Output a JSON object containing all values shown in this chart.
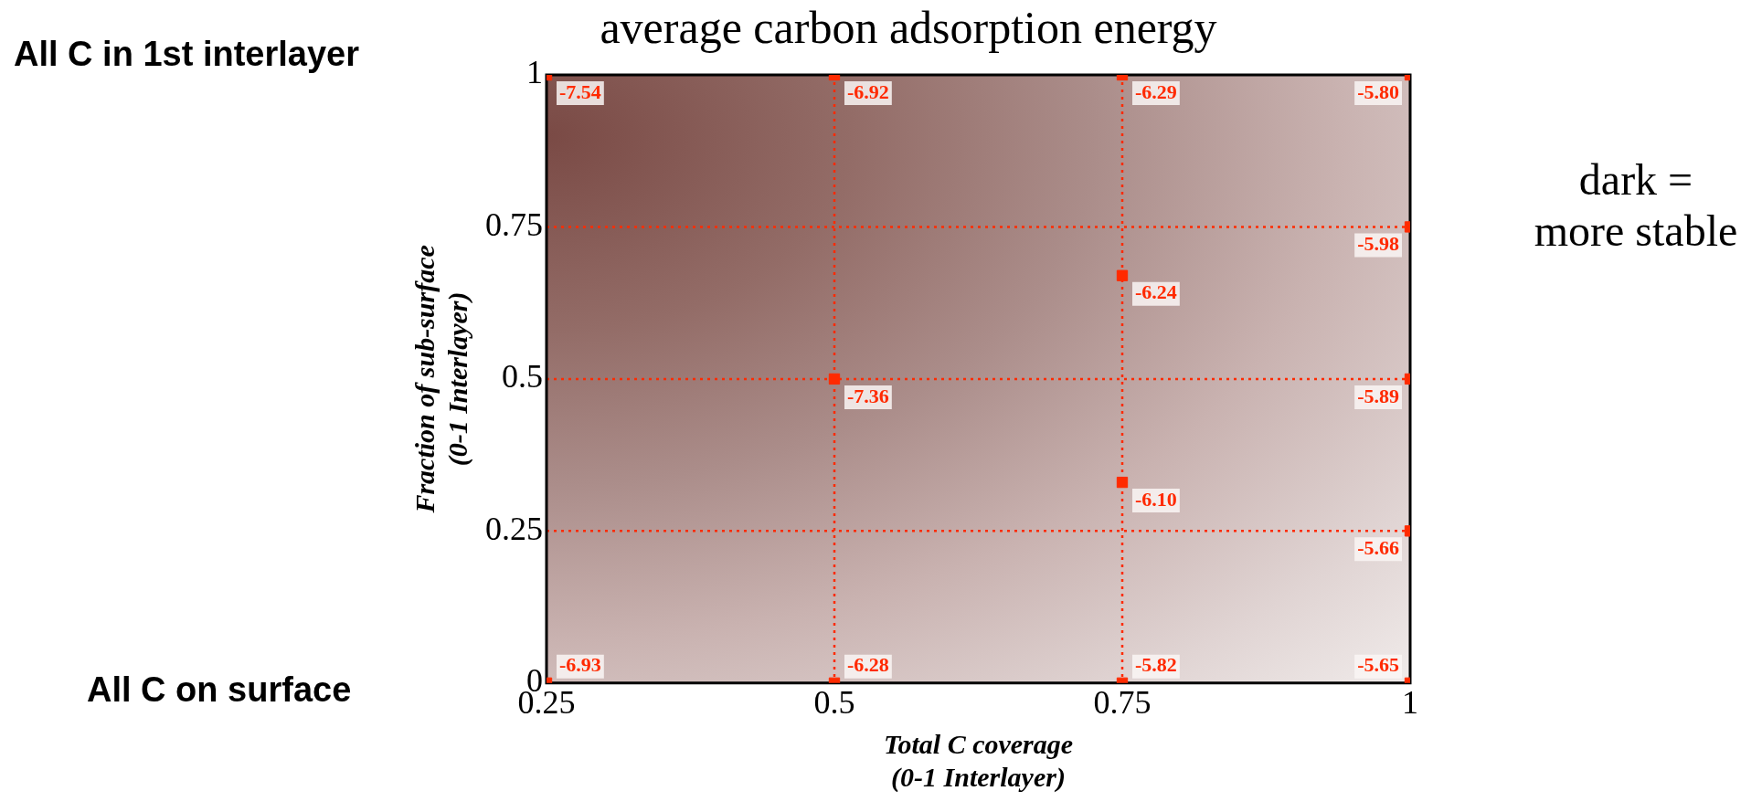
{
  "chart_data": {
    "type": "scatter",
    "title": "average carbon adsorption energy",
    "xlabel": "Total C coverage\n(0-1 Interlayer)",
    "ylabel": "Fraction of sub-surface\n(0-1 Interlayer)",
    "annotations": [
      "All C in 1st interlayer",
      "All C on surface",
      "dark =\nmore stable",
      {
        "text": "-7.54",
        "x": 0.25,
        "y": 1
      },
      {
        "text": "-6.92",
        "x": 0.5,
        "y": 1
      },
      {
        "text": "-6.29",
        "x": 0.75,
        "y": 1
      },
      {
        "text": "-5.80",
        "x": 1,
        "y": 1
      },
      {
        "text": "-5.98",
        "x": 1,
        "y": 0.75
      },
      {
        "text": "-6.24",
        "x": 0.75,
        "y": 0.67
      },
      {
        "text": "-7.36",
        "x": 0.5,
        "y": 0.5
      },
      {
        "text": "-5.89",
        "x": 1,
        "y": 0.5
      },
      {
        "text": "-6.10",
        "x": 0.75,
        "y": 0.33
      },
      {
        "text": "-5.66",
        "x": 1,
        "y": 0.25
      },
      {
        "text": "-6.93",
        "x": 0.25,
        "y": 0
      },
      {
        "text": "-6.28",
        "x": 0.5,
        "y": 0
      },
      {
        "text": "-5.82",
        "x": 0.75,
        "y": 0
      },
      {
        "text": "-5.65",
        "x": 1,
        "y": 0
      }
    ],
    "series": [
      {
        "color": "#ff2a00",
        "x": [
          0.25,
          0.5,
          0.75,
          1,
          1,
          0.75,
          0.5,
          1,
          0.75,
          1,
          0.25,
          0.5,
          0.75,
          1
        ],
        "values": [
          1,
          1,
          1,
          1,
          0.75,
          0.67,
          0.5,
          0.5,
          0.33,
          0.25,
          0,
          0,
          0,
          0
        ]
      }
    ],
    "xlim": [
      0.25,
      1
    ],
    "xticks": [
      0.25,
      0.5,
      0.75,
      1
    ],
    "ylim": [
      0,
      1
    ],
    "yticks": [
      0,
      0.25,
      0.5,
      0.75,
      1
    ],
    "ref_lines": [
      {
        "axis": "x",
        "value": 0.5,
        "color": "#ff2a00",
        "line_style": "dotted"
      },
      {
        "axis": "x",
        "value": 0.75,
        "color": "#ff2a00",
        "line_style": "dotted"
      },
      {
        "axis": "y",
        "value": 0.25,
        "color": "#ff2a00",
        "line_style": "dotted"
      },
      {
        "axis": "y",
        "value": 0.5,
        "color": "#ff2a00",
        "line_style": "dotted"
      },
      {
        "axis": "y",
        "value": 0.75,
        "color": "#ff2a00",
        "line_style": "dotted"
      }
    ],
    "grid": false,
    "legend": false,
    "marker": "square"
  }
}
